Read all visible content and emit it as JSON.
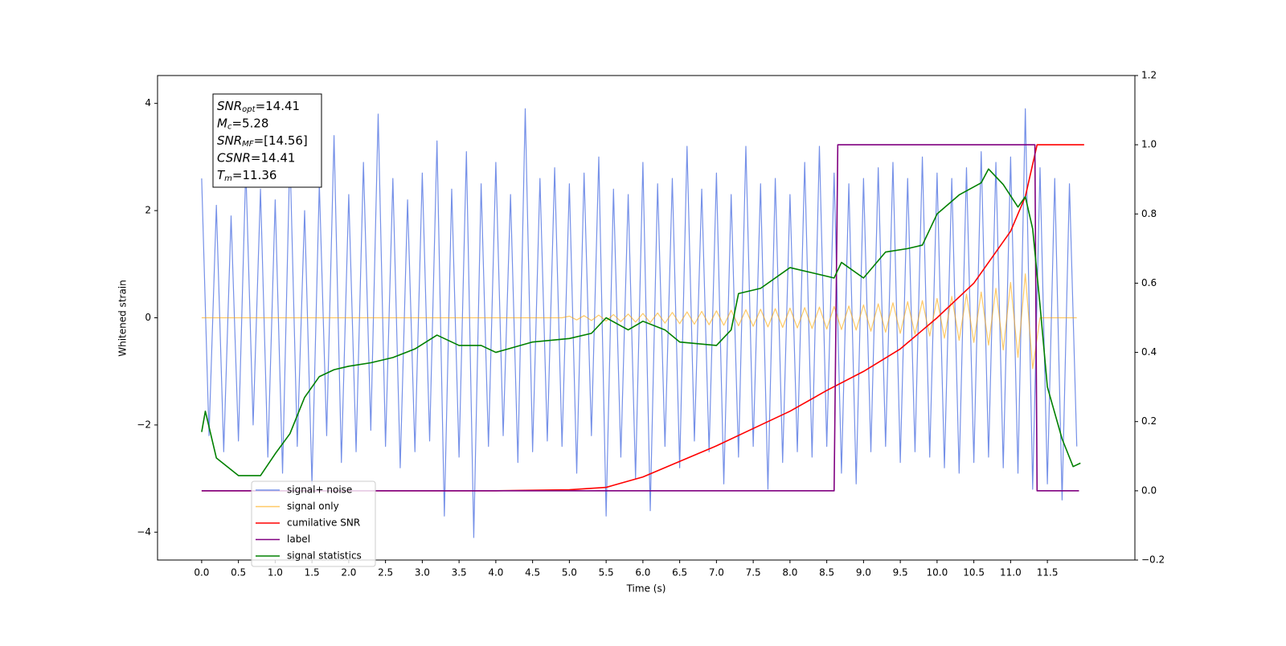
{
  "chart_data": {
    "type": "line",
    "xlabel": "Time (s)",
    "ylabel": "Whitened strain",
    "xlim": [
      -0.6,
      12.69
    ],
    "ylim": [
      -4.52,
      4.52
    ],
    "y2lim": [
      -0.2,
      1.2
    ],
    "xticks": [
      {
        "value": 0,
        "label": "0.0"
      },
      {
        "value": 0.5,
        "label": "0.5"
      },
      {
        "value": 1,
        "label": "1.0"
      },
      {
        "value": 1.5,
        "label": "1.5"
      },
      {
        "value": 2,
        "label": "2.0"
      },
      {
        "value": 2.5,
        "label": "2.5"
      },
      {
        "value": 3,
        "label": "3.0"
      },
      {
        "value": 3.5,
        "label": "3.5"
      },
      {
        "value": 4,
        "label": "4.0"
      },
      {
        "value": 4.5,
        "label": "4.5"
      },
      {
        "value": 5,
        "label": "5.0"
      },
      {
        "value": 5.5,
        "label": "5.5"
      },
      {
        "value": 6,
        "label": "6.0"
      },
      {
        "value": 6.5,
        "label": "6.5"
      },
      {
        "value": 7,
        "label": "7.0"
      },
      {
        "value": 7.5,
        "label": "7.5"
      },
      {
        "value": 8,
        "label": "8.0"
      },
      {
        "value": 8.5,
        "label": "8.5"
      },
      {
        "value": 9,
        "label": "9.0"
      },
      {
        "value": 9.5,
        "label": "9.5"
      },
      {
        "value": 10,
        "label": "10.0"
      },
      {
        "value": 10.5,
        "label": "10.5"
      },
      {
        "value": 11,
        "label": "11.0"
      },
      {
        "value": 11.5,
        "label": "11.5"
      }
    ],
    "yticks": [
      {
        "value": -4,
        "label": "−4"
      },
      {
        "value": -2,
        "label": "−2"
      },
      0,
      2,
      4
    ],
    "y2ticks": [
      {
        "value": -0.2,
        "label": "−0.2"
      },
      {
        "value": 0,
        "label": "0.0"
      },
      {
        "value": 0.2,
        "label": "0.2"
      },
      {
        "value": 0.4,
        "label": "0.4"
      },
      {
        "value": 0.6,
        "label": "0.6"
      },
      {
        "value": 0.8,
        "label": "0.8"
      },
      {
        "value": 1,
        "label": "1.0"
      },
      {
        "value": 1.2,
        "label": "1.2"
      }
    ],
    "annotations": [
      {
        "main": "SNR",
        "sub": "opt",
        "text": "=14.41"
      },
      {
        "main": "M",
        "sub": "c",
        "text": "=5.28"
      },
      {
        "main": "SNR",
        "sub": "MF",
        "text": "=[14.56]"
      },
      {
        "main": "CSNR",
        "sub": "",
        "text": "=14.41"
      },
      {
        "main": "T",
        "sub": "m",
        "text": "=11.36"
      }
    ],
    "series": [
      {
        "name": "signal+ noise",
        "color": "#7590e8",
        "x": [
          0,
          0.1,
          0.2,
          0.3,
          0.4,
          0.5,
          0.6,
          0.7,
          0.8,
          0.9,
          1,
          1.1,
          1.2,
          1.3,
          1.4,
          1.5,
          1.6,
          1.7,
          1.8,
          1.9,
          2,
          2.1,
          2.2,
          2.3,
          2.4,
          2.5,
          2.6,
          2.7,
          2.8,
          2.9,
          3,
          3.1,
          3.2,
          3.3,
          3.4,
          3.5,
          3.6,
          3.7,
          3.8,
          3.9,
          4,
          4.1,
          4.2,
          4.3,
          4.4,
          4.5,
          4.6,
          4.7,
          4.8,
          4.9,
          5,
          5.1,
          5.2,
          5.3,
          5.4,
          5.5,
          5.6,
          5.7,
          5.8,
          5.9,
          6,
          6.1,
          6.2,
          6.3,
          6.4,
          6.5,
          6.6,
          6.7,
          6.8,
          6.9,
          7,
          7.1,
          7.2,
          7.3,
          7.4,
          7.5,
          7.6,
          7.7,
          7.8,
          7.9,
          8,
          8.1,
          8.2,
          8.3,
          8.4,
          8.5,
          8.6,
          8.7,
          8.8,
          8.9,
          9,
          9.1,
          9.2,
          9.3,
          9.4,
          9.5,
          9.6,
          9.7,
          9.8,
          9.9,
          10,
          10.1,
          10.2,
          10.3,
          10.4,
          10.5,
          10.6,
          10.7,
          10.8,
          10.9,
          11,
          11.1,
          11.2,
          11.3,
          11.4,
          11.5,
          11.6,
          11.7,
          11.8,
          11.9
        ],
        "values": [
          2.6,
          -2.2,
          2.1,
          -2.5,
          1.9,
          -2.3,
          2.8,
          -2.0,
          2.4,
          -2.6,
          2.2,
          -2.9,
          3.1,
          -2.4,
          2.0,
          -3.1,
          2.5,
          -2.2,
          3.4,
          -2.7,
          2.3,
          -2.5,
          2.9,
          -2.1,
          3.8,
          -2.4,
          2.6,
          -2.8,
          2.2,
          -2.5,
          2.7,
          -2.3,
          3.3,
          -3.7,
          2.4,
          -2.6,
          3.1,
          -4.1,
          2.5,
          -2.4,
          2.9,
          -2.2,
          2.3,
          -2.7,
          3.9,
          -2.5,
          2.6,
          -2.3,
          2.8,
          -2.4,
          2.5,
          -2.9,
          2.7,
          -2.2,
          3.0,
          -3.7,
          2.4,
          -2.6,
          2.3,
          -3.0,
          2.9,
          -3.6,
          2.5,
          -2.4,
          2.6,
          -2.8,
          3.2,
          -2.3,
          2.4,
          -2.5,
          2.7,
          -3.1,
          2.3,
          -2.6,
          3.2,
          -2.4,
          2.5,
          -3.2,
          2.6,
          -2.7,
          2.3,
          -2.5,
          2.9,
          -2.6,
          3.2,
          -2.4,
          2.7,
          -2.9,
          2.5,
          -3.1,
          2.6,
          -2.5,
          2.8,
          -2.4,
          2.9,
          -2.7,
          2.6,
          -2.5,
          3.0,
          -2.6,
          2.7,
          -2.8,
          2.6,
          -2.9,
          2.8,
          -2.7,
          3.1,
          -2.6,
          2.9,
          -2.8,
          3.0,
          -2.9,
          3.9,
          -3.2,
          2.8,
          -3.1,
          2.6,
          -3.4,
          2.5,
          -2.4
        ]
      },
      {
        "name": "signal only",
        "color": "#ffa500",
        "x": [
          0,
          0.1,
          0.2,
          0.3,
          0.4,
          0.5,
          0.6,
          0.7,
          0.8,
          0.9,
          1,
          1.1,
          1.2,
          1.3,
          1.4,
          1.5,
          1.6,
          1.7,
          1.8,
          1.9,
          2,
          2.1,
          2.2,
          2.3,
          2.4,
          2.5,
          2.6,
          2.7,
          2.8,
          2.9,
          3,
          3.1,
          3.2,
          3.3,
          3.4,
          3.5,
          3.6,
          3.7,
          3.8,
          3.9,
          4,
          4.1,
          4.2,
          4.3,
          4.4,
          4.5,
          4.6,
          4.7,
          4.8,
          4.9,
          5,
          5.1,
          5.2,
          5.3,
          5.4,
          5.5,
          5.6,
          5.7,
          5.8,
          5.9,
          6,
          6.1,
          6.2,
          6.3,
          6.4,
          6.5,
          6.6,
          6.7,
          6.8,
          6.9,
          7,
          7.1,
          7.2,
          7.3,
          7.4,
          7.5,
          7.6,
          7.7,
          7.8,
          7.9,
          8,
          8.1,
          8.2,
          8.3,
          8.4,
          8.5,
          8.6,
          8.7,
          8.8,
          8.9,
          9,
          9.1,
          9.2,
          9.3,
          9.4,
          9.5,
          9.6,
          9.7,
          9.8,
          9.9,
          10,
          10.1,
          10.2,
          10.3,
          10.4,
          10.5,
          10.6,
          10.7,
          10.8,
          10.9,
          11,
          11.1,
          11.2,
          11.3,
          11.4,
          11.5,
          11.6,
          11.7,
          11.8,
          11.9
        ],
        "values": [
          0,
          0,
          0,
          0,
          0,
          0,
          0,
          0,
          0,
          0,
          0,
          0,
          0,
          0,
          0,
          0,
          0,
          0,
          0,
          0,
          0,
          0,
          0,
          0,
          0,
          0,
          0,
          0,
          0,
          0,
          0,
          0,
          0,
          0,
          0,
          0,
          0,
          0,
          0,
          0,
          0,
          0,
          0,
          0,
          0,
          0,
          0,
          0,
          0,
          0,
          0.03,
          -0.04,
          0.04,
          -0.05,
          0.05,
          -0.06,
          0.06,
          -0.07,
          0.07,
          -0.08,
          0.08,
          -0.09,
          0.09,
          -0.1,
          0.1,
          -0.11,
          0.11,
          -0.12,
          0.12,
          -0.13,
          0.13,
          -0.14,
          0.14,
          -0.15,
          0.15,
          -0.16,
          0.16,
          -0.17,
          0.17,
          -0.18,
          0.18,
          -0.19,
          0.19,
          -0.2,
          0.2,
          -0.21,
          0.21,
          -0.22,
          0.22,
          -0.23,
          0.24,
          -0.25,
          0.26,
          -0.27,
          0.28,
          -0.29,
          0.3,
          -0.31,
          0.32,
          -0.34,
          0.36,
          -0.38,
          0.4,
          -0.42,
          0.44,
          -0.46,
          0.48,
          -0.51,
          0.55,
          -0.6,
          0.66,
          -0.74,
          0.82,
          -0.95,
          0,
          0,
          0,
          0,
          0,
          0
        ]
      },
      {
        "name": "cumilative SNR",
        "color": "#ff0000",
        "axis": "y2",
        "x": [
          0,
          4,
          5,
          5.5,
          6,
          6.5,
          7,
          7.5,
          8,
          8.5,
          9,
          9.5,
          10,
          10.5,
          11,
          11.2,
          11.36,
          11.5,
          12
        ],
        "values": [
          0,
          0,
          0.003,
          0.01,
          0.04,
          0.085,
          0.13,
          0.18,
          0.23,
          0.29,
          0.345,
          0.41,
          0.5,
          0.6,
          0.75,
          0.85,
          1,
          1,
          1
        ]
      },
      {
        "name": "label",
        "color": "#800080",
        "axis": "y2",
        "x": [
          0,
          8.6,
          8.65,
          11.33,
          11.36,
          11.93
        ],
        "values": [
          0,
          0,
          1,
          1,
          0,
          0
        ]
      },
      {
        "name": "signal statistics",
        "color": "#008000",
        "axis": "y2",
        "x": [
          0,
          0.05,
          0.2,
          0.5,
          0.8,
          1,
          1.2,
          1.4,
          1.6,
          1.8,
          2,
          2.3,
          2.6,
          2.9,
          3.2,
          3.5,
          3.8,
          4,
          4.5,
          5,
          5.3,
          5.5,
          5.8,
          6,
          6.3,
          6.5,
          7,
          7.2,
          7.3,
          7.6,
          8,
          8.3,
          8.6,
          8.7,
          9,
          9.3,
          9.6,
          9.8,
          10,
          10.3,
          10.6,
          10.7,
          10.9,
          11.1,
          11.2,
          11.3,
          11.4,
          11.5,
          11.7,
          11.85,
          11.95
        ],
        "values": [
          0.17,
          0.23,
          0.095,
          0.044,
          0.044,
          0.107,
          0.165,
          0.27,
          0.33,
          0.35,
          0.36,
          0.37,
          0.385,
          0.41,
          0.45,
          0.42,
          0.42,
          0.4,
          0.43,
          0.44,
          0.455,
          0.5,
          0.465,
          0.49,
          0.465,
          0.43,
          0.42,
          0.465,
          0.57,
          0.585,
          0.645,
          0.63,
          0.615,
          0.66,
          0.615,
          0.69,
          0.7,
          0.71,
          0.8,
          0.855,
          0.89,
          0.93,
          0.885,
          0.82,
          0.85,
          0.757,
          0.536,
          0.3,
          0.15,
          0.07,
          0.08
        ]
      }
    ]
  }
}
